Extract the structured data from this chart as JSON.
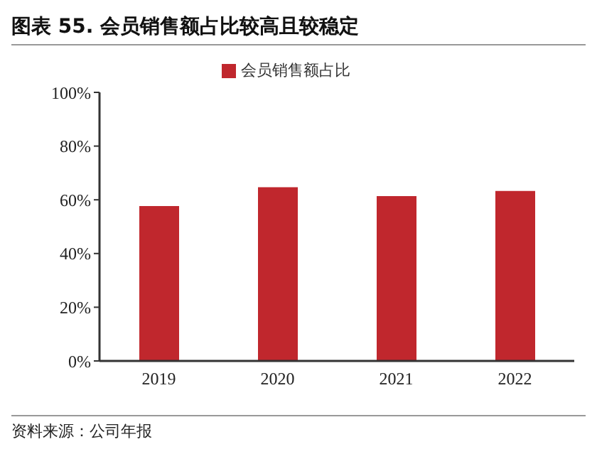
{
  "chart_data": {
    "type": "bar",
    "title": "图表 55. 会员销售额占比较高且较稳定",
    "categories": [
      "2019",
      "2020",
      "2021",
      "2022"
    ],
    "series": [
      {
        "name": "会员销售额占比",
        "color": "#c0272d",
        "values": [
          57.7,
          64.7,
          61.4,
          63.3
        ]
      }
    ],
    "ylim": [
      0,
      100
    ],
    "yticks": [
      {
        "value": 0,
        "label": "0%"
      },
      {
        "value": 20,
        "label": "20%"
      },
      {
        "value": 40,
        "label": "40%"
      },
      {
        "value": 60,
        "label": "60%"
      },
      {
        "value": 80,
        "label": "80%"
      },
      {
        "value": 100,
        "label": "100%"
      }
    ],
    "grid": false,
    "legend": "top",
    "annotations": [
      "资料来源：公司年报"
    ]
  }
}
